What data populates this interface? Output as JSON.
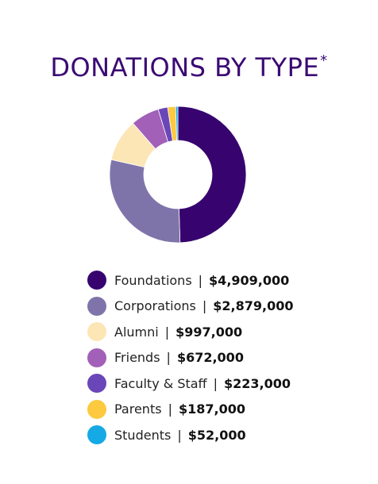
{
  "title": {
    "text": "DONATIONS BY TYPE",
    "footnote_mark": "*"
  },
  "chart_data": {
    "type": "pie",
    "style": "donut",
    "legend_position": "bottom",
    "categories": [
      "Foundations",
      "Corporations",
      "Alumni",
      "Friends",
      "Faculty & Staff",
      "Parents",
      "Students"
    ],
    "values": [
      4909000,
      2879000,
      997000,
      672000,
      223000,
      187000,
      52000
    ],
    "labels": [
      "$4,909,000",
      "$2,879,000",
      "$997,000",
      "$672,000",
      "$223,000",
      "$187,000",
      "$52,000"
    ],
    "colors": [
      "#37046f",
      "#7f74aa",
      "#fde6b5",
      "#a260b8",
      "#6a47b8",
      "#fcc93f",
      "#15a9e5"
    ]
  }
}
